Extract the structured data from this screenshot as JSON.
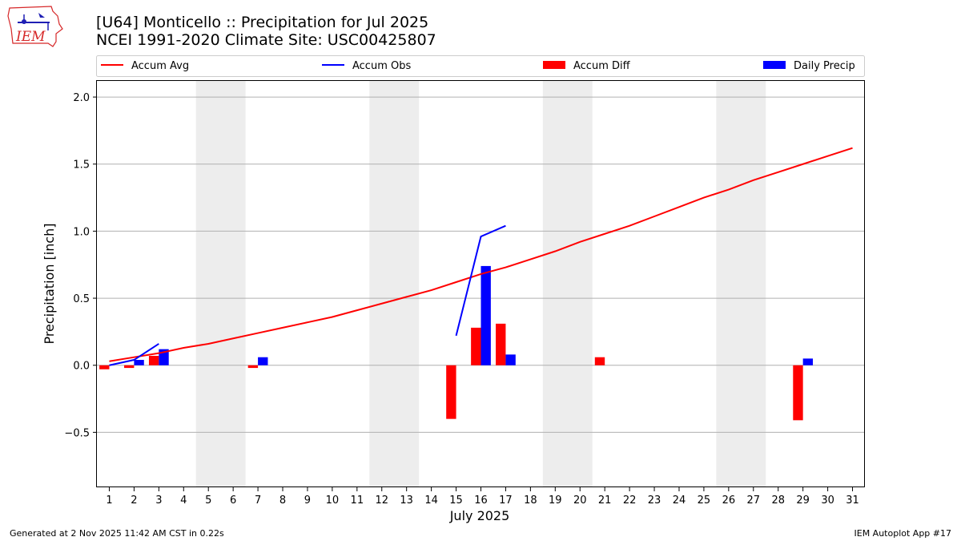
{
  "header": {
    "title_line1": "[U64] Monticello :: Precipitation for Jul 2025",
    "title_line2": "NCEI 1991-2020 Climate Site: USC00425807"
  },
  "logo": {
    "text": "IEM",
    "colors": {
      "outline": "#d62728",
      "text": "#d62728",
      "icon": "#1f1fb4"
    }
  },
  "footer": {
    "left": "Generated at 2 Nov 2025 11:42 AM CST in 0.22s",
    "right": "IEM Autoplot App #17"
  },
  "chart_data": {
    "type": "bar",
    "xlabel": "July 2025",
    "ylabel": "Precipitation [inch]",
    "xlim": [
      0.5,
      31.5
    ],
    "ylim": [
      -0.91,
      2.12
    ],
    "yticks": [
      -0.5,
      0.0,
      0.5,
      1.0,
      1.5,
      2.0
    ],
    "ytick_labels": [
      "−0.5",
      "0.0",
      "0.5",
      "1.0",
      "1.5",
      "2.0"
    ],
    "xticks": [
      1,
      2,
      3,
      4,
      5,
      6,
      7,
      8,
      9,
      10,
      11,
      12,
      13,
      14,
      15,
      16,
      17,
      18,
      19,
      20,
      21,
      22,
      23,
      24,
      25,
      26,
      27,
      28,
      29,
      30,
      31
    ],
    "grid": "horizontal",
    "legend_placement": "top",
    "weekend_shading": [
      [
        5,
        6
      ],
      [
        12,
        13
      ],
      [
        19,
        20
      ],
      [
        26,
        27
      ]
    ],
    "colors": {
      "avg": "#ff0000",
      "obs": "#0000ff",
      "diff": "#ff0000",
      "daily": "#0000ff",
      "shade": "#ededed",
      "grid": "#b0b0b0"
    },
    "legend": [
      "Accum Avg",
      "Accum Obs",
      "Accum Diff",
      "Daily Precip"
    ],
    "series": [
      {
        "name": "Accum Avg",
        "kind": "line",
        "x": [
          1,
          2,
          3,
          4,
          5,
          6,
          7,
          8,
          9,
          10,
          11,
          12,
          13,
          14,
          15,
          16,
          17,
          18,
          19,
          20,
          21,
          22,
          23,
          24,
          25,
          26,
          27,
          28,
          29,
          30,
          31
        ],
        "values": [
          0.03,
          0.06,
          0.09,
          0.13,
          0.16,
          0.2,
          0.24,
          0.28,
          0.32,
          0.36,
          0.41,
          0.46,
          0.51,
          0.56,
          0.62,
          0.68,
          0.73,
          0.79,
          0.85,
          0.92,
          0.98,
          1.04,
          1.11,
          1.18,
          1.25,
          1.31,
          1.38,
          1.44,
          1.5,
          1.56,
          1.62
        ]
      },
      {
        "name": "Accum Obs",
        "kind": "line",
        "segments": [
          {
            "x": [
              1,
              2,
              3
            ],
            "values": [
              0.0,
              0.04,
              0.16
            ]
          },
          {
            "x": [
              15,
              16,
              17
            ],
            "values": [
              0.22,
              0.96,
              1.04
            ]
          }
        ]
      },
      {
        "name": "Accum Diff",
        "kind": "bar",
        "x": [
          1,
          2,
          3,
          7,
          15,
          16,
          17,
          21,
          29
        ],
        "values": [
          -0.03,
          -0.02,
          0.07,
          -0.02,
          -0.4,
          0.28,
          0.31,
          0.06,
          -0.41
        ]
      },
      {
        "name": "Daily Precip",
        "kind": "bar",
        "x": [
          2,
          3,
          7,
          16,
          17,
          29
        ],
        "values": [
          0.04,
          0.12,
          0.06,
          0.74,
          0.08,
          0.05
        ]
      }
    ]
  }
}
